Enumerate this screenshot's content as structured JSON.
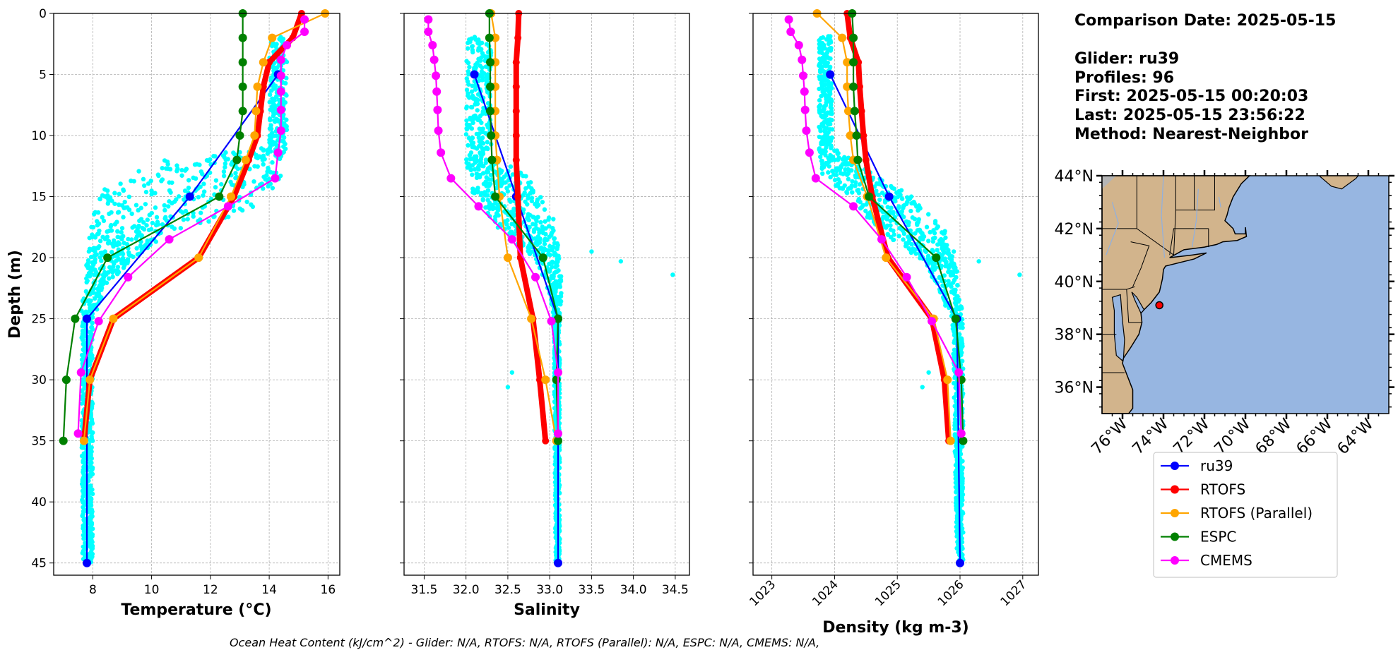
{
  "info": {
    "comparison_date": "Comparison Date: 2025-05-15",
    "glider": "Glider: ru39",
    "profiles": "Profiles: 96",
    "first": "First: 2025-05-15 00:20:03",
    "last": "Last: 2025-05-15 23:56:22",
    "method": "Method: Nearest-Neighbor"
  },
  "caption": "Ocean Heat Content (kJ/cm^2) - Glider: N/A,  RTOFS: N/A,  RTOFS (Parallel): N/A,  ESPC: N/A,  CMEMS: N/A,",
  "colors": {
    "ru39": "#0000ff",
    "RTOFS": "#ff0000",
    "RTOFS (Parallel)": "#ffa500",
    "ESPC": "#008000",
    "CMEMS": "#ff00ff",
    "glider_scatter": "#00ffff",
    "land": "#d2b48c",
    "ocean": "#97b6e1"
  },
  "legend": {
    "placement": "below map",
    "entries": [
      "ru39",
      "RTOFS",
      "RTOFS (Parallel)",
      "ESPC",
      "CMEMS"
    ]
  },
  "map": {
    "lat_labels": [
      "44°N",
      "42°N",
      "40°N",
      "38°N",
      "36°N"
    ],
    "lat_values": [
      44,
      42,
      40,
      38,
      36
    ],
    "lon_labels": [
      "76°W",
      "74°W",
      "72°W",
      "70°W",
      "68°W",
      "66°W",
      "64°W"
    ],
    "lon_values": [
      -76,
      -74,
      -72,
      -70,
      -68,
      -66,
      -64
    ],
    "extent": {
      "lon": [
        -77,
        -63
      ],
      "lat": [
        35,
        44
      ]
    },
    "glider_position": {
      "lon": -74.2,
      "lat": 39.1
    }
  },
  "chart_data": [
    {
      "type": "line",
      "xlabel": "Temperature (°C)",
      "ylabel": "Depth (m)",
      "xlim": [
        6.67,
        16.4
      ],
      "ylim": [
        46,
        0
      ],
      "xticks": [
        8,
        10,
        12,
        14,
        16
      ],
      "xtick_labels": [
        "8",
        "10",
        "12",
        "14",
        "16"
      ],
      "yticks": [
        0,
        5,
        10,
        15,
        20,
        25,
        30,
        35,
        40,
        45
      ],
      "ytick_labels": [
        "0",
        "5",
        "10",
        "15",
        "20",
        "25",
        "30",
        "35",
        "40",
        "45"
      ],
      "grid": true,
      "glider_scatter_range": [
        [
          2,
          14.0,
          14.6
        ],
        [
          11,
          14.0,
          14.6
        ],
        [
          12,
          10.5,
          14.5
        ],
        [
          14,
          8.5,
          14.4
        ],
        [
          16,
          8.0,
          13.5
        ],
        [
          18,
          7.9,
          10.5
        ],
        [
          20,
          7.8,
          9.5
        ],
        [
          22,
          7.7,
          8.5
        ],
        [
          25,
          7.6,
          8.0
        ],
        [
          45,
          7.65,
          8.0
        ]
      ],
      "glider_scatter_outliers": [],
      "series": [
        {
          "name": "ru39",
          "depth": [
            5,
            15,
            25,
            45
          ],
          "values": [
            14.3,
            11.3,
            7.8,
            7.8
          ]
        },
        {
          "name": "RTOFS",
          "depth": [
            0,
            2,
            4,
            6,
            8,
            10,
            12,
            15,
            20,
            25,
            30,
            35
          ],
          "values": [
            15.1,
            14.8,
            14.0,
            13.8,
            13.7,
            13.6,
            13.3,
            12.8,
            11.6,
            8.7,
            7.9,
            7.7
          ]
        },
        {
          "name": "RTOFS (Parallel)",
          "depth": [
            0,
            2,
            4,
            6,
            8,
            10,
            12,
            15,
            20,
            25,
            30,
            35
          ],
          "values": [
            15.9,
            14.1,
            13.8,
            13.6,
            13.55,
            13.5,
            13.2,
            12.7,
            11.6,
            8.7,
            7.9,
            7.7
          ]
        },
        {
          "name": "ESPC",
          "depth": [
            0,
            2,
            4,
            6,
            8,
            10,
            12,
            15,
            20,
            25,
            30,
            35
          ],
          "values": [
            13.1,
            13.1,
            13.1,
            13.1,
            13.1,
            13.0,
            12.9,
            12.3,
            8.5,
            7.4,
            7.1,
            7.0
          ]
        },
        {
          "name": "CMEMS",
          "depth": [
            0.5,
            1.5,
            2.6,
            3.8,
            5.1,
            6.4,
            7.9,
            9.6,
            11.4,
            13.5,
            15.8,
            18.5,
            21.6,
            25.2,
            29.4,
            34.4
          ],
          "values": [
            15.2,
            15.2,
            14.6,
            14.4,
            14.4,
            14.4,
            14.4,
            14.4,
            14.3,
            14.2,
            12.6,
            10.6,
            9.2,
            8.2,
            7.6,
            7.5
          ]
        }
      ]
    },
    {
      "type": "line",
      "xlabel": "Salinity",
      "xlim": [
        31.26,
        34.67
      ],
      "ylim": [
        46,
        0
      ],
      "xticks": [
        31.5,
        32.0,
        32.5,
        33.0,
        33.5,
        34.0,
        34.5
      ],
      "xtick_labels": [
        "31.5",
        "32.0",
        "32.5",
        "33.0",
        "33.5",
        "34.0",
        "34.5"
      ],
      "yticks": [
        0,
        5,
        10,
        15,
        20,
        25,
        30,
        35,
        40,
        45
      ],
      "grid": true,
      "glider_scatter_range": [
        [
          2,
          32.0,
          32.3
        ],
        [
          12,
          32.0,
          32.3
        ],
        [
          13,
          32.0,
          32.7
        ],
        [
          15,
          32.1,
          32.9
        ],
        [
          17,
          32.3,
          33.05
        ],
        [
          20,
          32.8,
          33.12
        ],
        [
          23,
          33.0,
          33.15
        ],
        [
          25,
          33.05,
          33.12
        ],
        [
          45,
          33.07,
          33.12
        ]
      ],
      "glider_scatter_outliers": [
        [
          33.5,
          19.5
        ],
        [
          33.85,
          20.3
        ],
        [
          34.47,
          21.4
        ],
        [
          32.55,
          29.4
        ],
        [
          32.5,
          30.6
        ]
      ],
      "series": [
        {
          "name": "ru39",
          "depth": [
            5,
            15,
            25,
            45
          ],
          "values": [
            32.1,
            32.6,
            33.1,
            33.1
          ]
        },
        {
          "name": "RTOFS",
          "depth": [
            0,
            2,
            4,
            6,
            8,
            10,
            12,
            15,
            20,
            25,
            30,
            35
          ],
          "values": [
            32.63,
            32.62,
            32.6,
            32.6,
            32.6,
            32.6,
            32.6,
            32.62,
            32.65,
            32.8,
            32.88,
            32.95
          ]
        },
        {
          "name": "RTOFS (Parallel)",
          "depth": [
            0,
            2,
            4,
            6,
            8,
            10,
            12,
            15,
            20,
            25,
            30,
            35
          ],
          "values": [
            32.3,
            32.35,
            32.35,
            32.35,
            32.35,
            32.35,
            32.37,
            32.4,
            32.5,
            32.78,
            32.95,
            33.08
          ]
        },
        {
          "name": "ESPC",
          "depth": [
            0,
            2,
            4,
            6,
            8,
            10,
            12,
            15,
            20,
            25,
            30,
            35
          ],
          "values": [
            32.28,
            32.28,
            32.29,
            32.29,
            32.29,
            32.3,
            32.31,
            32.35,
            32.92,
            33.1,
            33.08,
            33.1
          ]
        },
        {
          "name": "CMEMS",
          "depth": [
            0.5,
            1.5,
            2.6,
            3.8,
            5.1,
            6.4,
            7.9,
            9.6,
            11.4,
            13.5,
            15.8,
            18.5,
            21.6,
            25.2,
            29.4,
            34.4
          ],
          "values": [
            31.55,
            31.55,
            31.6,
            31.62,
            31.64,
            31.65,
            31.66,
            31.67,
            31.7,
            31.82,
            32.15,
            32.55,
            32.83,
            33.02,
            33.1,
            33.1
          ]
        }
      ]
    },
    {
      "type": "line",
      "xlabel": "Density (kg m-3)",
      "xlim": [
        1022.7,
        1027.25
      ],
      "ylim": [
        46,
        0
      ],
      "xticks": [
        1023,
        1024,
        1025,
        1026,
        1027
      ],
      "xtick_labels": [
        "1023",
        "1024",
        "1025",
        "1026",
        "1027"
      ],
      "yticks": [
        0,
        5,
        10,
        15,
        20,
        25,
        30,
        35,
        40,
        45
      ],
      "grid": true,
      "glider_scatter_range": [
        [
          2,
          1023.75,
          1023.95
        ],
        [
          11,
          1023.75,
          1023.97
        ],
        [
          13,
          1023.8,
          1024.6
        ],
        [
          15,
          1024.2,
          1025.2
        ],
        [
          18,
          1024.8,
          1025.8
        ],
        [
          21,
          1025.5,
          1025.95
        ],
        [
          25,
          1025.88,
          1026.05
        ],
        [
          45,
          1025.95,
          1026.05
        ]
      ],
      "glider_scatter_outliers": [
        [
          1025.9,
          19.5
        ],
        [
          1026.3,
          20.3
        ],
        [
          1026.95,
          21.4
        ],
        [
          1025.5,
          29.4
        ],
        [
          1025.4,
          30.6
        ]
      ],
      "series": [
        {
          "name": "ru39",
          "depth": [
            5,
            15,
            25,
            45
          ],
          "values": [
            1023.93,
            1024.87,
            1025.95,
            1026.0
          ]
        },
        {
          "name": "RTOFS",
          "depth": [
            0,
            2,
            4,
            6,
            8,
            10,
            12,
            15,
            20,
            25,
            30,
            35
          ],
          "values": [
            1024.2,
            1024.25,
            1024.38,
            1024.4,
            1024.43,
            1024.46,
            1024.5,
            1024.6,
            1024.85,
            1025.55,
            1025.75,
            1025.82
          ]
        },
        {
          "name": "RTOFS (Parallel)",
          "depth": [
            0,
            2,
            4,
            6,
            8,
            10,
            12,
            15,
            20,
            25,
            30,
            35
          ],
          "values": [
            1023.72,
            1024.12,
            1024.2,
            1024.2,
            1024.22,
            1024.25,
            1024.3,
            1024.52,
            1024.82,
            1025.58,
            1025.8,
            1025.85
          ]
        },
        {
          "name": "ESPC",
          "depth": [
            0,
            2,
            4,
            6,
            8,
            10,
            12,
            15,
            20,
            25,
            30,
            35
          ],
          "values": [
            1024.28,
            1024.3,
            1024.3,
            1024.3,
            1024.32,
            1024.35,
            1024.37,
            1024.55,
            1025.62,
            1025.93,
            1026.02,
            1026.05
          ]
        },
        {
          "name": "CMEMS",
          "depth": [
            0.5,
            1.5,
            2.6,
            3.8,
            5.1,
            6.4,
            7.9,
            9.6,
            11.4,
            13.5,
            15.8,
            18.5,
            21.6,
            25.2,
            29.4,
            34.4
          ],
          "values": [
            1023.27,
            1023.3,
            1023.43,
            1023.48,
            1023.5,
            1023.52,
            1023.53,
            1023.55,
            1023.6,
            1023.7,
            1024.3,
            1024.75,
            1025.15,
            1025.55,
            1025.98,
            1026.02
          ]
        }
      ]
    }
  ]
}
